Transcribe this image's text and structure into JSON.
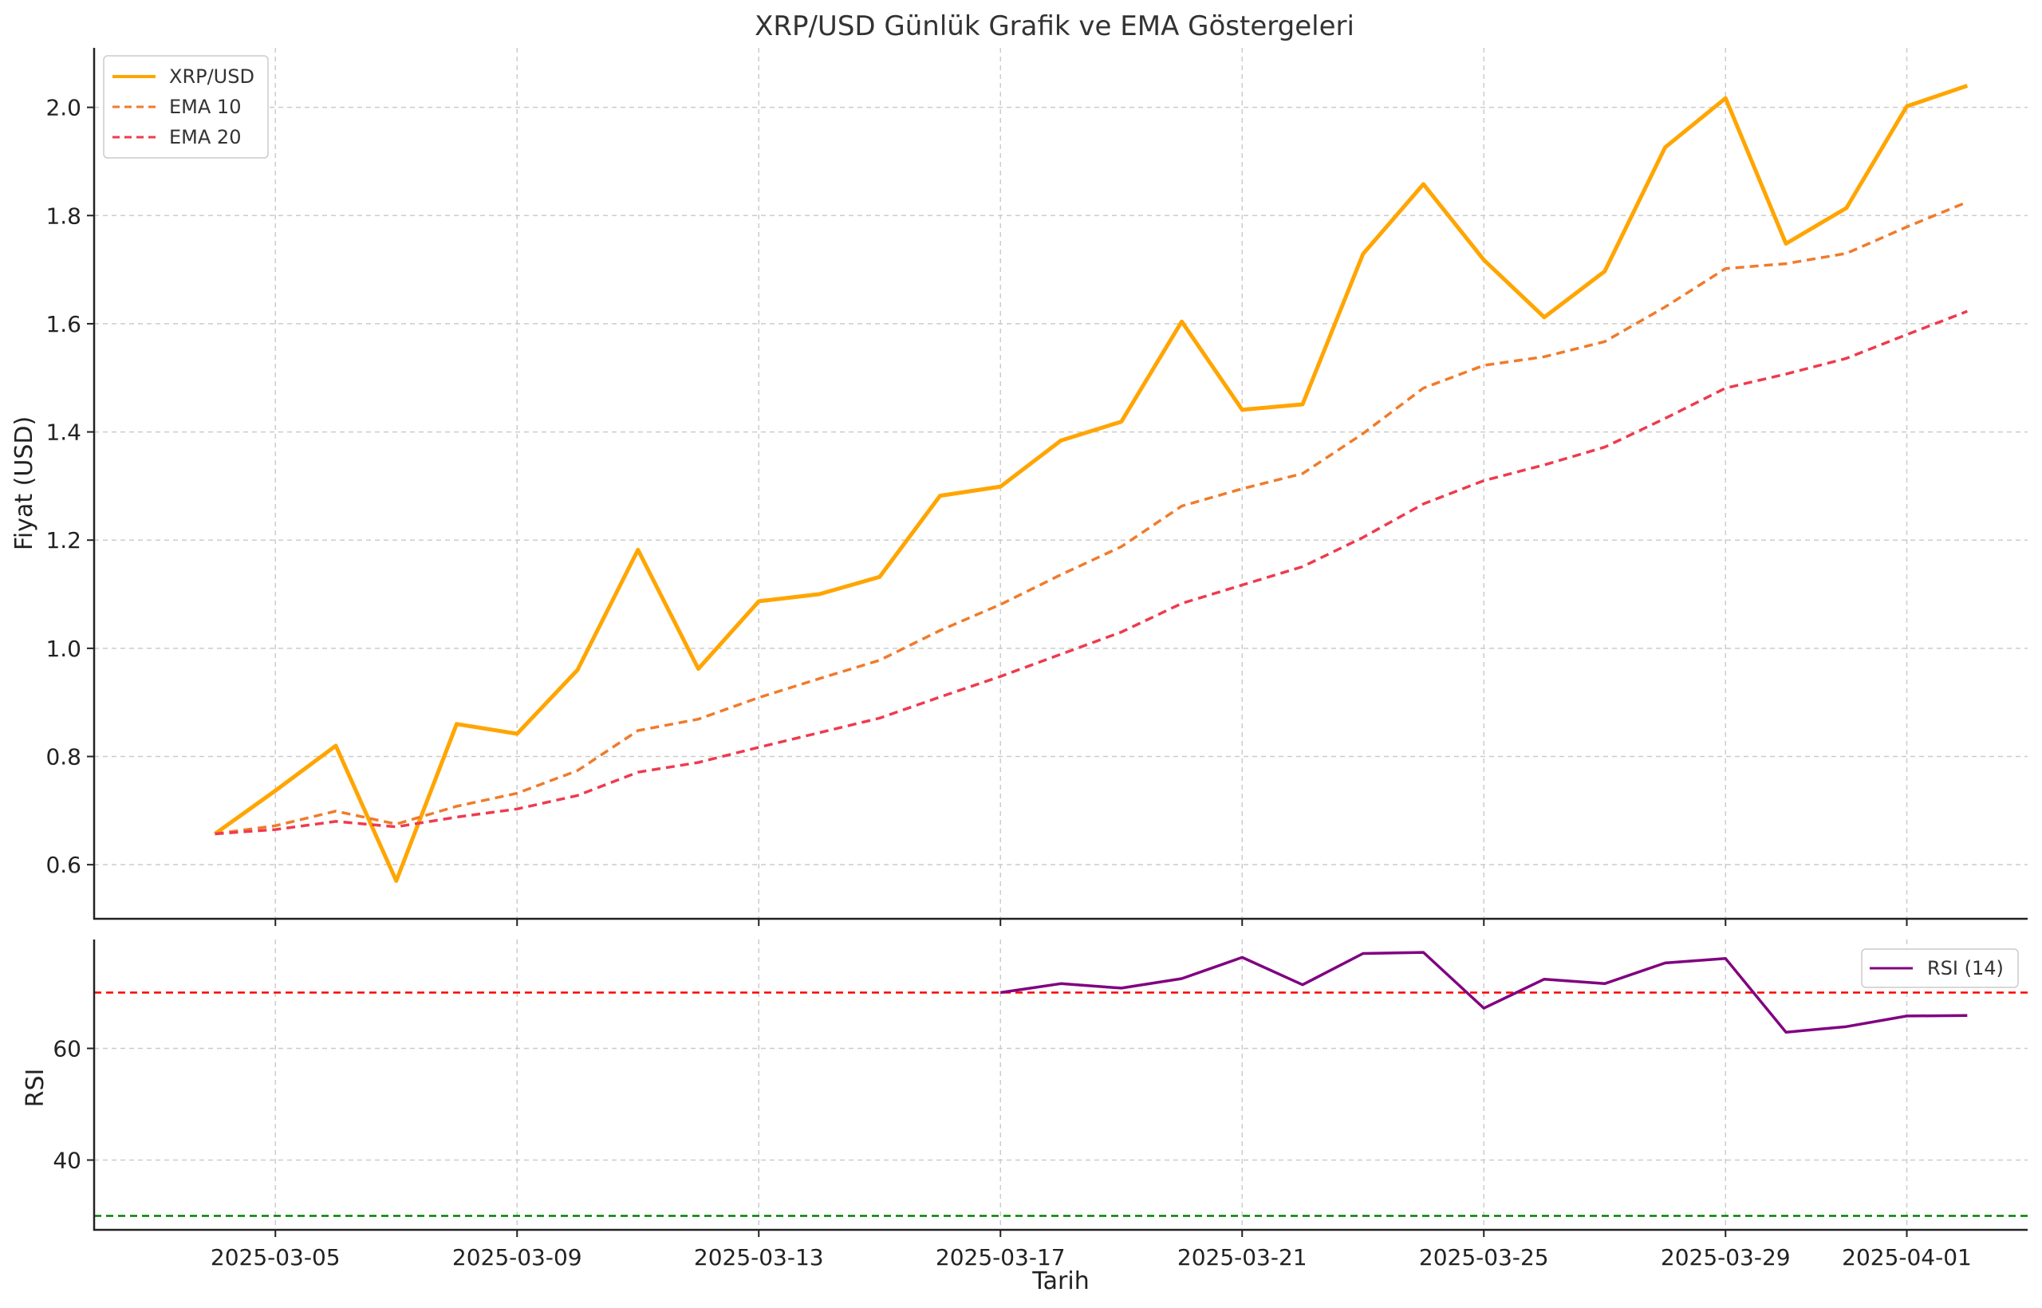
{
  "chart_data": [
    {
      "type": "line",
      "title": "XRP/USD Günlük Grafik ve EMA Göstergeleri",
      "ylabel": "Fiyat (USD)",
      "xlabel": "",
      "x": [
        "2025-03-04",
        "2025-03-05",
        "2025-03-06",
        "2025-03-07",
        "2025-03-08",
        "2025-03-09",
        "2025-03-10",
        "2025-03-11",
        "2025-03-12",
        "2025-03-13",
        "2025-03-14",
        "2025-03-15",
        "2025-03-16",
        "2025-03-17",
        "2025-03-18",
        "2025-03-19",
        "2025-03-20",
        "2025-03-21",
        "2025-03-22",
        "2025-03-23",
        "2025-03-24",
        "2025-03-25",
        "2025-03-26",
        "2025-03-27",
        "2025-03-28",
        "2025-03-29",
        "2025-03-30",
        "2025-03-31",
        "2025-04-01",
        "2025-04-02"
      ],
      "xlim": [
        "2025-03-02",
        "2025-04-03"
      ],
      "ylim": [
        0.5,
        2.11
      ],
      "yticks": [
        0.6,
        0.8,
        1.0,
        1.2,
        1.4,
        1.6,
        1.8,
        2.0
      ],
      "grid": true,
      "legend_position": "top-left",
      "series": [
        {
          "name": "XRP/USD",
          "style": "solid",
          "color": "#FFA500",
          "values": [
            0.657,
            0.737,
            0.82,
            0.57,
            0.86,
            0.842,
            0.96,
            1.182,
            0.962,
            1.087,
            1.1,
            1.132,
            1.282,
            1.299,
            1.384,
            1.419,
            1.604,
            1.441,
            1.451,
            1.729,
            1.858,
            1.718,
            1.612,
            1.697,
            1.926,
            2.017,
            1.748,
            1.814,
            2.002,
            2.04
          ]
        },
        {
          "name": "EMA 10",
          "style": "dashed",
          "color": "#F07B2B",
          "values": [
            0.657,
            0.672,
            0.699,
            0.675,
            0.708,
            0.732,
            0.774,
            0.848,
            0.869,
            0.909,
            0.944,
            0.978,
            1.033,
            1.081,
            1.136,
            1.188,
            1.263,
            1.295,
            1.323,
            1.397,
            1.481,
            1.523,
            1.539,
            1.567,
            1.631,
            1.702,
            1.711,
            1.73,
            1.779,
            1.825
          ]
        },
        {
          "name": "EMA 20",
          "style": "dashed",
          "color": "#EE3B4E",
          "values": [
            0.657,
            0.665,
            0.68,
            0.67,
            0.688,
            0.703,
            0.728,
            0.771,
            0.789,
            0.817,
            0.844,
            0.871,
            0.91,
            0.948,
            0.989,
            1.03,
            1.083,
            1.117,
            1.151,
            1.205,
            1.267,
            1.31,
            1.339,
            1.372,
            1.425,
            1.481,
            1.507,
            1.536,
            1.58,
            1.623
          ]
        }
      ]
    },
    {
      "type": "line",
      "title": "",
      "ylabel": "RSI",
      "xlabel": "Tarih",
      "xlim": [
        "2025-03-02",
        "2025-04-03"
      ],
      "ylim": [
        27.5,
        79.5
      ],
      "yticks": [
        40,
        60
      ],
      "xticks": [
        "2025-03-05",
        "2025-03-09",
        "2025-03-13",
        "2025-03-17",
        "2025-03-21",
        "2025-03-25",
        "2025-03-29",
        "2025-04-01"
      ],
      "grid": true,
      "legend_position": "top-right",
      "reference_lines": [
        {
          "value": 70,
          "color": "#FF0000",
          "style": "dashed"
        },
        {
          "value": 30,
          "color": "#008000",
          "style": "dashed"
        }
      ],
      "series": [
        {
          "name": "RSI (14)",
          "style": "solid",
          "color": "#800080",
          "x": [
            "2025-03-17",
            "2025-03-18",
            "2025-03-19",
            "2025-03-20",
            "2025-03-21",
            "2025-03-22",
            "2025-03-23",
            "2025-03-24",
            "2025-03-25",
            "2025-03-26",
            "2025-03-27",
            "2025-03-28",
            "2025-03-29",
            "2025-03-30",
            "2025-03-31",
            "2025-04-01",
            "2025-04-02"
          ],
          "values": [
            70.0,
            71.6,
            70.8,
            72.5,
            76.3,
            71.4,
            77.0,
            77.2,
            67.2,
            72.4,
            71.6,
            75.3,
            76.1,
            62.9,
            63.9,
            65.8,
            65.9
          ]
        }
      ]
    }
  ]
}
